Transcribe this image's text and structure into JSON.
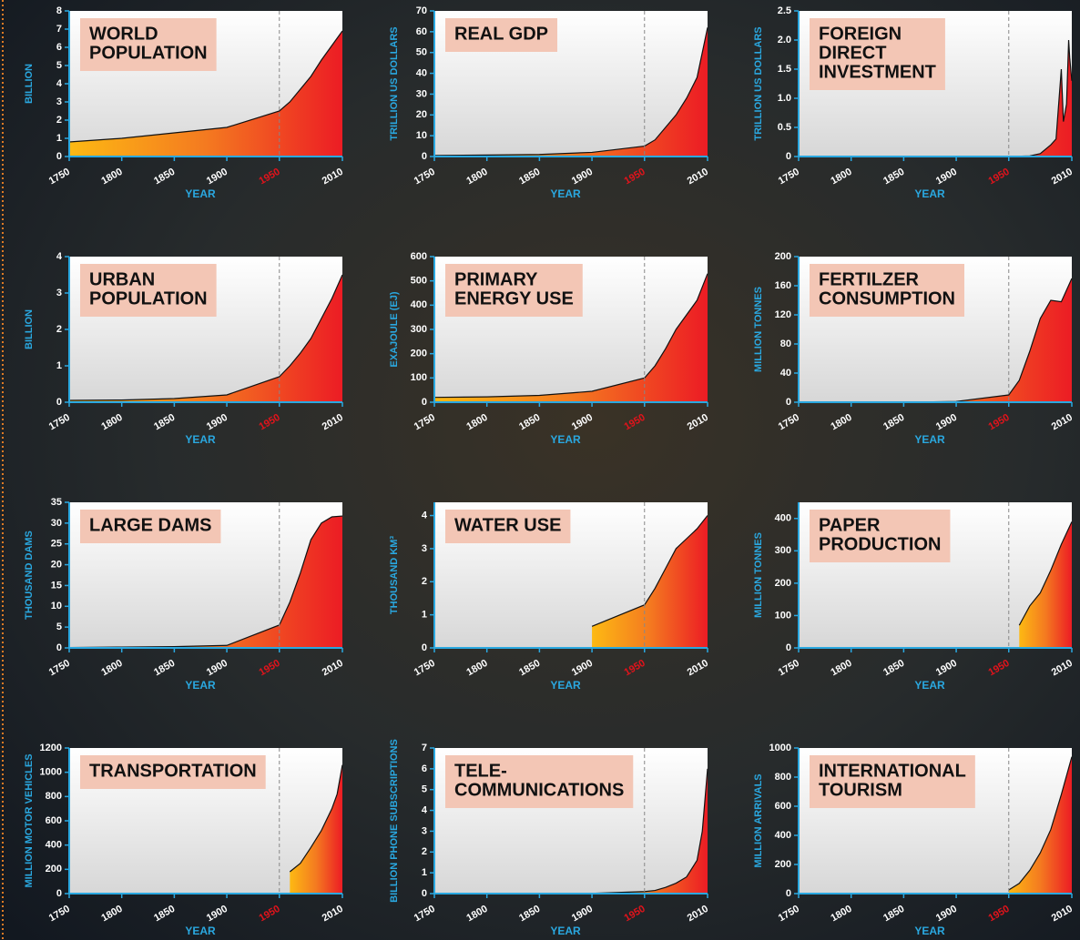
{
  "chart_data": [
    {
      "type": "area",
      "title": [
        "WORLD",
        "POPULATION"
      ],
      "y_label": "BILLION",
      "x_label": "YEAR",
      "x": [
        1750,
        1800,
        1850,
        1900,
        1950,
        1960,
        1970,
        1980,
        1990,
        2000,
        2010
      ],
      "values": [
        0.8,
        1.0,
        1.3,
        1.6,
        2.5,
        3.0,
        3.7,
        4.4,
        5.3,
        6.1,
        6.9
      ],
      "xlim": [
        1750,
        2010
      ],
      "xticks": [
        1750,
        1800,
        1850,
        1900,
        1950,
        2010
      ],
      "highlight_x": 1950,
      "ylim": [
        0,
        8
      ],
      "yticks": [
        0,
        1,
        2,
        3,
        4,
        5,
        6,
        7,
        8
      ],
      "colors": [
        "#fdb913",
        "#f47a20",
        "#ec1c24"
      ]
    },
    {
      "type": "area",
      "title": [
        "REAL GDP"
      ],
      "y_label": "TRILLION US DOLLARS",
      "x_label": "YEAR",
      "x": [
        1750,
        1800,
        1850,
        1900,
        1950,
        1960,
        1970,
        1980,
        1990,
        2000,
        2010
      ],
      "values": [
        0.5,
        0.7,
        1,
        2,
        5,
        8,
        14,
        20,
        28,
        38,
        62
      ],
      "xlim": [
        1750,
        2010
      ],
      "xticks": [
        1750,
        1800,
        1850,
        1900,
        1950,
        2010
      ],
      "highlight_x": 1950,
      "ylim": [
        0,
        70
      ],
      "yticks": [
        0,
        10,
        20,
        30,
        40,
        50,
        60,
        70
      ],
      "colors": [
        "#fdb913",
        "#f47a20",
        "#ec1c24"
      ]
    },
    {
      "type": "area",
      "title": [
        "FOREIGN",
        "DIRECT",
        "INVESTMENT"
      ],
      "y_label": "TRILLION US DOLLARS",
      "x_label": "YEAR",
      "x": [
        1750,
        1900,
        1950,
        1970,
        1980,
        1990,
        1995,
        2000,
        2002,
        2005,
        2007,
        2008,
        2010
      ],
      "values": [
        0,
        0,
        0,
        0.01,
        0.05,
        0.2,
        0.3,
        1.5,
        0.6,
        0.9,
        2.0,
        1.7,
        1.3
      ],
      "xlim": [
        1750,
        2010
      ],
      "xticks": [
        1750,
        1800,
        1850,
        1900,
        1950,
        2010
      ],
      "highlight_x": 1950,
      "ylim": [
        0,
        2.5
      ],
      "yticks": [
        0,
        0.5,
        {
          "value": 1,
          "label": "1.0"
        },
        1.5,
        {
          "value": 2,
          "label": "2.0"
        },
        2.5
      ],
      "colors": [
        "#fdb913",
        "#f47a20",
        "#ec1c24"
      ]
    },
    {
      "type": "area",
      "title": [
        "URBAN",
        "POPULATION"
      ],
      "y_label": "BILLION",
      "x_label": "YEAR",
      "x": [
        1750,
        1800,
        1850,
        1900,
        1950,
        1960,
        1970,
        1980,
        1990,
        2000,
        2010
      ],
      "values": [
        0.05,
        0.06,
        0.1,
        0.2,
        0.7,
        1.0,
        1.35,
        1.75,
        2.3,
        2.85,
        3.5
      ],
      "xlim": [
        1750,
        2010
      ],
      "xticks": [
        1750,
        1800,
        1850,
        1900,
        1950,
        2010
      ],
      "highlight_x": 1950,
      "ylim": [
        0,
        4
      ],
      "yticks": [
        0,
        1,
        2,
        3,
        4
      ],
      "colors": [
        "#fdb913",
        "#f47a20",
        "#ec1c24"
      ]
    },
    {
      "type": "area",
      "title": [
        "PRIMARY",
        "ENERGY USE"
      ],
      "y_label": "EXAJOULE (EJ)",
      "x_label": "YEAR",
      "x": [
        1750,
        1800,
        1850,
        1900,
        1950,
        1960,
        1970,
        1980,
        1990,
        2000,
        2010
      ],
      "values": [
        20,
        22,
        28,
        45,
        100,
        150,
        220,
        300,
        360,
        420,
        530
      ],
      "xlim": [
        1750,
        2010
      ],
      "xticks": [
        1750,
        1800,
        1850,
        1900,
        1950,
        2010
      ],
      "highlight_x": 1950,
      "ylim": [
        0,
        600
      ],
      "yticks": [
        0,
        100,
        200,
        300,
        400,
        500,
        600
      ],
      "colors": [
        "#fdb913",
        "#f47a20",
        "#ec1c24"
      ]
    },
    {
      "type": "area",
      "title": [
        "FERTILZER",
        "CONSUMPTION"
      ],
      "y_label": "MILLION TONNES",
      "x_label": "YEAR",
      "x": [
        1750,
        1800,
        1850,
        1900,
        1950,
        1960,
        1970,
        1980,
        1990,
        2000,
        2010
      ],
      "values": [
        0,
        0,
        0,
        1,
        10,
        30,
        70,
        115,
        140,
        138,
        170
      ],
      "xlim": [
        1750,
        2010
      ],
      "xticks": [
        1750,
        1800,
        1850,
        1900,
        1950,
        2010
      ],
      "highlight_x": 1950,
      "ylim": [
        0,
        200
      ],
      "yticks": [
        0,
        40,
        80,
        120,
        160,
        200
      ],
      "colors": [
        "#fdb913",
        "#f47a20",
        "#ec1c24"
      ]
    },
    {
      "type": "area",
      "title": [
        "LARGE DAMS"
      ],
      "y_label": "THOUSAND DAMS",
      "x_label": "YEAR",
      "x": [
        1750,
        1800,
        1850,
        1900,
        1950,
        1960,
        1970,
        1980,
        1990,
        2000,
        2010
      ],
      "values": [
        0.1,
        0.2,
        0.3,
        0.6,
        5.5,
        11,
        18,
        26,
        30,
        31.5,
        31.7
      ],
      "xlim": [
        1750,
        2010
      ],
      "xticks": [
        1750,
        1800,
        1850,
        1900,
        1950,
        2010
      ],
      "highlight_x": 1950,
      "ylim": [
        0,
        35
      ],
      "yticks": [
        0,
        5,
        10,
        15,
        20,
        25,
        30,
        35
      ],
      "colors": [
        "#fdb913",
        "#f47a20",
        "#ec1c24"
      ]
    },
    {
      "type": "area",
      "title": [
        "WATER USE"
      ],
      "y_label": "THOUSAND KM³",
      "x_label": "YEAR",
      "x": [
        1900,
        1950,
        1960,
        1970,
        1980,
        1990,
        2000,
        2010
      ],
      "values": [
        0.65,
        1.3,
        1.8,
        2.4,
        3.0,
        3.3,
        3.6,
        4.0
      ],
      "xlim": [
        1750,
        2010
      ],
      "xticks": [
        1750,
        1800,
        1850,
        1900,
        1950,
        2010
      ],
      "highlight_x": 1950,
      "ylim": [
        0,
        4.4
      ],
      "yticks": [
        0,
        1,
        2,
        3,
        4
      ],
      "colors": [
        "#fdb913",
        "#f47a20",
        "#ec1c24"
      ]
    },
    {
      "type": "area",
      "title": [
        "PAPER",
        "PRODUCTION"
      ],
      "y_label": "MILLION TONNES",
      "x_label": "YEAR",
      "x": [
        1960,
        1970,
        1980,
        1990,
        2000,
        2010
      ],
      "values": [
        70,
        130,
        170,
        240,
        320,
        390
      ],
      "xlim": [
        1750,
        2010
      ],
      "xticks": [
        1750,
        1800,
        1850,
        1900,
        1950,
        2010
      ],
      "highlight_x": 1950,
      "ylim": [
        0,
        450
      ],
      "yticks": [
        0,
        100,
        200,
        300,
        400
      ],
      "colors": [
        "#fdb913",
        "#f47a20",
        "#ec1c24"
      ]
    },
    {
      "type": "area",
      "title": [
        "TRANSPORTATION"
      ],
      "y_label": "MILLION MOTOR VEHICLES",
      "x_label": "YEAR",
      "x": [
        1960,
        1970,
        1980,
        1990,
        2000,
        2005,
        2010
      ],
      "values": [
        180,
        250,
        380,
        520,
        700,
        820,
        1060
      ],
      "xlim": [
        1750,
        2010
      ],
      "xticks": [
        1750,
        1800,
        1850,
        1900,
        1950,
        2010
      ],
      "highlight_x": 1950,
      "ylim": [
        0,
        1200
      ],
      "yticks": [
        0,
        200,
        400,
        600,
        800,
        1000,
        1200
      ],
      "colors": [
        "#fdb913",
        "#f47a20",
        "#ec1c24"
      ]
    },
    {
      "type": "area",
      "title": [
        "TELE-",
        "COMMUNICATIONS"
      ],
      "y_label": "BILLION PHONE SUBSCRIPTIONS",
      "x_label": "YEAR",
      "x": [
        1900,
        1950,
        1960,
        1970,
        1980,
        1990,
        2000,
        2005,
        2010
      ],
      "values": [
        0.01,
        0.1,
        0.15,
        0.3,
        0.5,
        0.8,
        1.6,
        3,
        6
      ],
      "xlim": [
        1750,
        2010
      ],
      "xticks": [
        1750,
        1800,
        1850,
        1900,
        1950,
        2010
      ],
      "highlight_x": 1950,
      "ylim": [
        0,
        7
      ],
      "yticks": [
        0,
        1,
        2,
        3,
        4,
        5,
        6,
        7
      ],
      "colors": [
        "#fdb913",
        "#f47a20",
        "#ec1c24"
      ]
    },
    {
      "type": "area",
      "title": [
        "INTERNATIONAL",
        "TOURISM"
      ],
      "y_label": "MILLION ARRIVALS",
      "x_label": "YEAR",
      "x": [
        1950,
        1960,
        1970,
        1980,
        1990,
        2000,
        2010
      ],
      "values": [
        25,
        70,
        160,
        280,
        440,
        680,
        940
      ],
      "xlim": [
        1750,
        2010
      ],
      "xticks": [
        1750,
        1800,
        1850,
        1900,
        1950,
        2010
      ],
      "highlight_x": 1950,
      "ylim": [
        0,
        1000
      ],
      "yticks": [
        0,
        200,
        400,
        600,
        800,
        1000
      ],
      "colors": [
        "#fdb913",
        "#f47a20",
        "#ec1c24"
      ]
    }
  ]
}
